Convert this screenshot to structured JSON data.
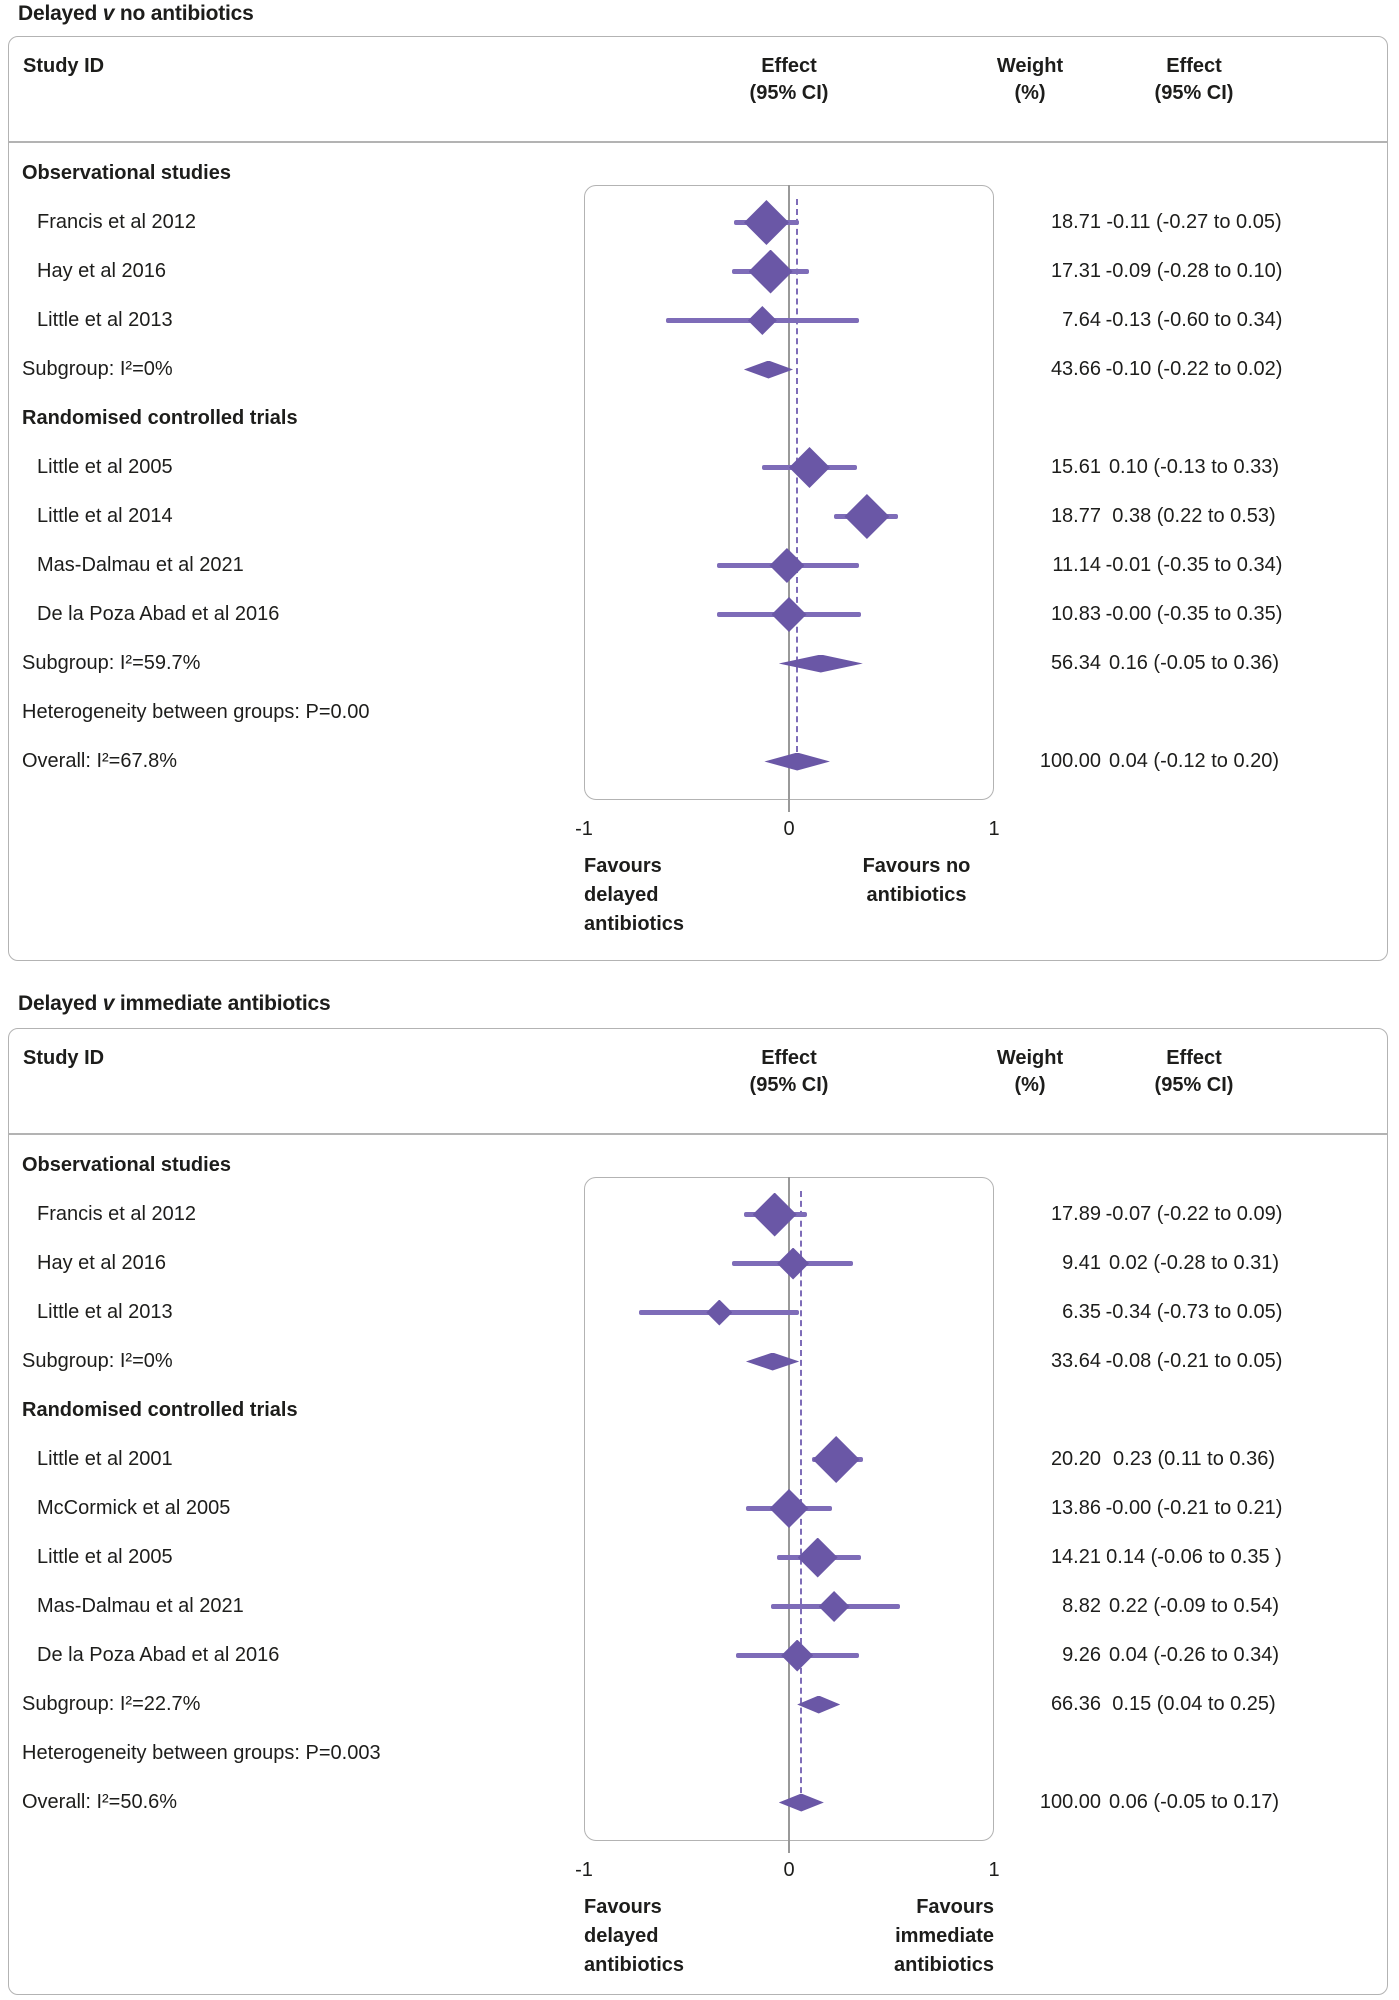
{
  "colors": {
    "diamond": "#6a57a6",
    "ci_line": "#7e6cb8",
    "overall_dashed_line": "#7e6cb8",
    "zero_line": "#999999",
    "panel_border": "#b3b3b3",
    "text": "#1d1d1b"
  },
  "chart_data": [
    {
      "type": "forest",
      "title": {
        "pre": "Delayed ",
        "v": "v",
        "post": " no antibiotics"
      },
      "header": {
        "study": "Study ID",
        "effect_line1": "Effect",
        "effect_line2": "(95% CI)",
        "weight_line1": "Weight",
        "weight_line2": "(%)",
        "effect2_line1": "Effect",
        "effect2_line2": "(95% CI)"
      },
      "axis": {
        "min": -1,
        "max": 1,
        "ticks": [
          "-1",
          "0",
          "1"
        ],
        "tick_values": [
          -1,
          0,
          1
        ]
      },
      "overall_effect": 0.04,
      "favours_left": [
        "Favours",
        "delayed",
        "antibiotics"
      ],
      "favours_right": [
        "Favours no",
        "antibiotics"
      ],
      "favours_right_align": "center",
      "rows": [
        {
          "kind": "group",
          "label": "Observational studies"
        },
        {
          "kind": "study",
          "label": "Francis et al 2012",
          "weight": 18.71,
          "weight_text": "18.71",
          "effect": -0.11,
          "lo": -0.27,
          "hi": 0.05,
          "ci_text": "-0.11 (-0.27 to 0.05)"
        },
        {
          "kind": "study",
          "label": "Hay et al 2016",
          "weight": 17.31,
          "weight_text": "17.31",
          "effect": -0.09,
          "lo": -0.28,
          "hi": 0.1,
          "ci_text": "-0.09 (-0.28 to 0.10)"
        },
        {
          "kind": "study",
          "label": "Little et al 2013",
          "weight": 7.64,
          "weight_text": "7.64",
          "effect": -0.13,
          "lo": -0.6,
          "hi": 0.34,
          "ci_text": "-0.13 (-0.60 to 0.34)"
        },
        {
          "kind": "subgroup",
          "label": "Subgroup: I²=0%",
          "weight_text": "43.66",
          "effect": -0.1,
          "lo": -0.22,
          "hi": 0.02,
          "ci_text": "-0.10 (-0.22 to 0.02)"
        },
        {
          "kind": "group",
          "label": "Randomised controlled trials"
        },
        {
          "kind": "study",
          "label": "Little et al 2005",
          "weight": 15.61,
          "weight_text": "15.61",
          "effect": 0.1,
          "lo": -0.13,
          "hi": 0.33,
          "ci_text": "0.10 (-0.13 to 0.33)"
        },
        {
          "kind": "study",
          "label": "Little et al 2014",
          "weight": 18.77,
          "weight_text": "18.77",
          "effect": 0.38,
          "lo": 0.22,
          "hi": 0.53,
          "ci_text": "0.38 (0.22 to 0.53)"
        },
        {
          "kind": "study",
          "label": "Mas-Dalmau et al 2021",
          "weight": 11.14,
          "weight_text": "11.14",
          "effect": -0.01,
          "lo": -0.35,
          "hi": 0.34,
          "ci_text": "-0.01 (-0.35 to 0.34)"
        },
        {
          "kind": "study",
          "label": "De la Poza Abad et al 2016",
          "weight": 10.83,
          "weight_text": "10.83",
          "effect": 0.0,
          "lo": -0.35,
          "hi": 0.35,
          "ci_text": "-0.00 (-0.35 to 0.35)"
        },
        {
          "kind": "subgroup",
          "label": "Subgroup: I²=59.7%",
          "weight_text": "56.34",
          "effect": 0.16,
          "lo": -0.05,
          "hi": 0.36,
          "ci_text": "0.16 (-0.05 to 0.36)"
        },
        {
          "kind": "note",
          "label": "Heterogeneity between groups: P=0.00"
        },
        {
          "kind": "overall",
          "label": "Overall: I²=67.8%",
          "weight_text": "100.00",
          "effect": 0.04,
          "lo": -0.12,
          "hi": 0.2,
          "ci_text": "0.04 (-0.12 to 0.20)"
        }
      ]
    },
    {
      "type": "forest",
      "title": {
        "pre": "Delayed ",
        "v": "v",
        "post": " immediate antibiotics"
      },
      "header": {
        "study": "Study ID",
        "effect_line1": "Effect",
        "effect_line2": "(95% CI)",
        "weight_line1": "Weight",
        "weight_line2": "(%)",
        "effect2_line1": "Effect",
        "effect2_line2": "(95% CI)"
      },
      "axis": {
        "min": -1,
        "max": 1,
        "ticks": [
          "-1",
          "0",
          "1"
        ],
        "tick_values": [
          -1,
          0,
          1
        ]
      },
      "overall_effect": 0.06,
      "favours_left": [
        "Favours",
        "delayed",
        "antibiotics"
      ],
      "favours_right": [
        "Favours",
        "immediate",
        "antibiotics"
      ],
      "favours_right_align": "right",
      "rows": [
        {
          "kind": "group",
          "label": "Observational studies"
        },
        {
          "kind": "study",
          "label": "Francis et al 2012",
          "weight": 17.89,
          "weight_text": "17.89",
          "effect": -0.07,
          "lo": -0.22,
          "hi": 0.09,
          "ci_text": "-0.07 (-0.22 to 0.09)"
        },
        {
          "kind": "study",
          "label": "Hay et al 2016",
          "weight": 9.41,
          "weight_text": "9.41",
          "effect": 0.02,
          "lo": -0.28,
          "hi": 0.31,
          "ci_text": "0.02 (-0.28 to 0.31)"
        },
        {
          "kind": "study",
          "label": "Little et al 2013",
          "weight": 6.35,
          "weight_text": "6.35",
          "effect": -0.34,
          "lo": -0.73,
          "hi": 0.05,
          "ci_text": "-0.34 (-0.73 to 0.05)"
        },
        {
          "kind": "subgroup",
          "label": "Subgroup: I²=0%",
          "weight_text": "33.64",
          "effect": -0.08,
          "lo": -0.21,
          "hi": 0.05,
          "ci_text": "-0.08 (-0.21 to 0.05)"
        },
        {
          "kind": "group",
          "label": "Randomised controlled trials"
        },
        {
          "kind": "study",
          "label": "Little et al 2001",
          "weight": 20.2,
          "weight_text": "20.20",
          "effect": 0.23,
          "lo": 0.11,
          "hi": 0.36,
          "ci_text": "0.23 (0.11 to 0.36)"
        },
        {
          "kind": "study",
          "label": "McCormick et al 2005",
          "weight": 13.86,
          "weight_text": "13.86",
          "effect": 0.0,
          "lo": -0.21,
          "hi": 0.21,
          "ci_text": "-0.00 (-0.21 to 0.21)"
        },
        {
          "kind": "study",
          "label": "Little et al 2005",
          "weight": 14.21,
          "weight_text": "14.21",
          "effect": 0.14,
          "lo": -0.06,
          "hi": 0.35,
          "ci_text": "0.14 (-0.06 to 0.35 )"
        },
        {
          "kind": "study",
          "label": "Mas-Dalmau et al 2021",
          "weight": 8.82,
          "weight_text": "8.82",
          "effect": 0.22,
          "lo": -0.09,
          "hi": 0.54,
          "ci_text": "0.22 (-0.09 to 0.54)"
        },
        {
          "kind": "study",
          "label": "De la Poza Abad et al 2016",
          "weight": 9.26,
          "weight_text": "9.26",
          "effect": 0.04,
          "lo": -0.26,
          "hi": 0.34,
          "ci_text": "0.04 (-0.26 to 0.34)"
        },
        {
          "kind": "subgroup",
          "label": "Subgroup: I²=22.7%",
          "weight_text": "66.36",
          "effect": 0.15,
          "lo": 0.04,
          "hi": 0.25,
          "ci_text": "0.15 (0.04 to 0.25)"
        },
        {
          "kind": "note",
          "label": "Heterogeneity between groups: P=0.003"
        },
        {
          "kind": "overall",
          "label": "Overall: I²=50.6%",
          "weight_text": "100.00",
          "effect": 0.06,
          "lo": -0.05,
          "hi": 0.17,
          "ci_text": "0.06 (-0.05 to 0.17)"
        }
      ]
    }
  ]
}
